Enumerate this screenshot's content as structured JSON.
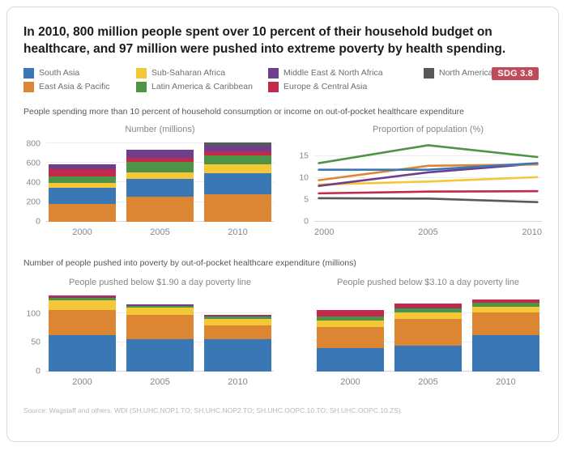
{
  "header": {
    "title": "In 2010, 800 million people spent over 10 percent of their household budget on healthcare, and 97 million were pushed into extreme poverty by health spending.",
    "badge": "SDG 3.8"
  },
  "colors": {
    "south_asia": "#3A77B5",
    "east_asia_pacific": "#DC8633",
    "sub_saharan_africa": "#F3C736",
    "latin_america_caribbean": "#4E9447",
    "middle_east_north_africa": "#6F3E8C",
    "europe_central_asia": "#C2294B",
    "north_america": "#58595B",
    "badge_background": "#C04B5B"
  },
  "legend": {
    "items": [
      {
        "label": "South Asia",
        "color": "south_asia"
      },
      {
        "label": "Sub-Saharan Africa",
        "color": "sub_saharan_africa"
      },
      {
        "label": "Middle East & North Africa",
        "color": "middle_east_north_africa"
      },
      {
        "label": "North America",
        "color": "north_america"
      },
      {
        "label": "East Asia & Pacific",
        "color": "east_asia_pacific"
      },
      {
        "label": "Latin America & Caribbean",
        "color": "latin_america_caribbean"
      },
      {
        "label": "Europe & Central Asia",
        "color": "europe_central_asia"
      }
    ]
  },
  "sections": {
    "spending": "People spending more than 10 percent of household consumption or income on out-of-pocket healthcare expenditure",
    "poverty": "Number of people pushed into poverty by out-of-pocket healthcare expenditure (millions)"
  },
  "chart_data": [
    {
      "id": "number-millions",
      "type": "stacked-bar",
      "title": "Number (millions)",
      "categories": [
        "2000",
        "2005",
        "2010"
      ],
      "yticks": [
        0,
        200,
        400,
        600,
        800
      ],
      "scale_max": 828,
      "grid": true,
      "series": [
        {
          "name": "East Asia & Pacific",
          "color": "east_asia_pacific",
          "values": [
            183,
            258,
            277
          ]
        },
        {
          "name": "South Asia",
          "color": "south_asia",
          "values": [
            167,
            177,
            220
          ]
        },
        {
          "name": "Sub-Saharan Africa",
          "color": "sub_saharan_africa",
          "values": [
            42,
            70,
            88
          ]
        },
        {
          "name": "Latin America & Caribbean",
          "color": "latin_america_caribbean",
          "values": [
            73,
            105,
            88
          ]
        },
        {
          "name": "Europe & Central Asia",
          "color": "europe_central_asia",
          "values": [
            75,
            40,
            47
          ]
        },
        {
          "name": "Middle East & North Africa",
          "color": "middle_east_north_africa",
          "values": [
            46,
            82,
            58
          ]
        },
        {
          "name": "North America",
          "color": "north_america",
          "values": [
            4,
            5,
            28
          ]
        }
      ]
    },
    {
      "id": "proportion-population",
      "type": "line",
      "title": "Proportion of population (%)",
      "categories": [
        "2000",
        "2005",
        "2010"
      ],
      "yticks": [
        0,
        5,
        10,
        15
      ],
      "scale_max": 18.5,
      "grid": true,
      "series": [
        {
          "name": "North America",
          "color": "north_america",
          "values": [
            5.4,
            5.3,
            4.5
          ]
        },
        {
          "name": "Europe & Central Asia",
          "color": "europe_central_asia",
          "values": [
            6.5,
            6.9,
            7.0
          ]
        },
        {
          "name": "Sub-Saharan Africa",
          "color": "sub_saharan_africa",
          "values": [
            8.5,
            9.2,
            10.2
          ]
        },
        {
          "name": "Middle East & North Africa",
          "color": "middle_east_north_africa",
          "values": [
            8.2,
            11.3,
            13.3
          ]
        },
        {
          "name": "East Asia & Pacific",
          "color": "east_asia_pacific",
          "values": [
            9.5,
            12.8,
            13.1
          ]
        },
        {
          "name": "South Asia",
          "color": "south_asia",
          "values": [
            11.9,
            11.9,
            13.4
          ]
        },
        {
          "name": "Latin America & Caribbean",
          "color": "latin_america_caribbean",
          "values": [
            13.4,
            17.5,
            14.8
          ]
        }
      ]
    },
    {
      "id": "poverty-190",
      "type": "stacked-bar",
      "title": "People pushed below $1.90 a day poverty line",
      "categories": [
        "2000",
        "2005",
        "2010"
      ],
      "yticks": [
        0,
        50,
        100
      ],
      "scale_max": 134,
      "grid": true,
      "series": [
        {
          "name": "South Asia",
          "color": "south_asia",
          "values": [
            63,
            56,
            56
          ]
        },
        {
          "name": "East Asia & Pacific",
          "color": "east_asia_pacific",
          "values": [
            43,
            41,
            23
          ]
        },
        {
          "name": "Sub-Saharan Africa",
          "color": "sub_saharan_africa",
          "values": [
            17,
            13,
            12
          ]
        },
        {
          "name": "Latin America & Caribbean",
          "color": "latin_america_caribbean",
          "values": [
            4,
            3,
            3
          ]
        },
        {
          "name": "Middle East & North Africa",
          "color": "middle_east_north_africa",
          "values": [
            1,
            2,
            2
          ]
        },
        {
          "name": "Europe & Central Asia",
          "color": "europe_central_asia",
          "values": [
            3,
            1,
            1
          ]
        }
      ]
    },
    {
      "id": "poverty-310",
      "type": "stacked-bar",
      "title": "People pushed below $3.10 a day poverty line",
      "categories": [
        "2000",
        "2005",
        "2010"
      ],
      "yticks": [
        0,
        50,
        100
      ],
      "scale_max": 134,
      "show_ytick_labels": false,
      "grid": true,
      "series": [
        {
          "name": "South Asia",
          "color": "south_asia",
          "values": [
            40,
            44,
            63
          ]
        },
        {
          "name": "East Asia & Pacific",
          "color": "east_asia_pacific",
          "values": [
            37,
            47,
            38
          ]
        },
        {
          "name": "Sub-Saharan Africa",
          "color": "sub_saharan_africa",
          "values": [
            10,
            10,
            10
          ]
        },
        {
          "name": "Latin America & Caribbean",
          "color": "latin_america_caribbean",
          "values": [
            7,
            8,
            7
          ]
        },
        {
          "name": "Middle East & North Africa",
          "color": "middle_east_north_africa",
          "values": [
            1,
            1,
            1
          ]
        },
        {
          "name": "Europe & Central Asia",
          "color": "europe_central_asia",
          "values": [
            11,
            7,
            5
          ]
        }
      ]
    }
  ],
  "source": "Source: Wagstaff and others. WDI (SH.UHC.NOP1.TO; SH.UHC.NOP2.TO; SH.UHC.OOPC.10.TO; SH.UHC.OOPC.10.ZS)."
}
